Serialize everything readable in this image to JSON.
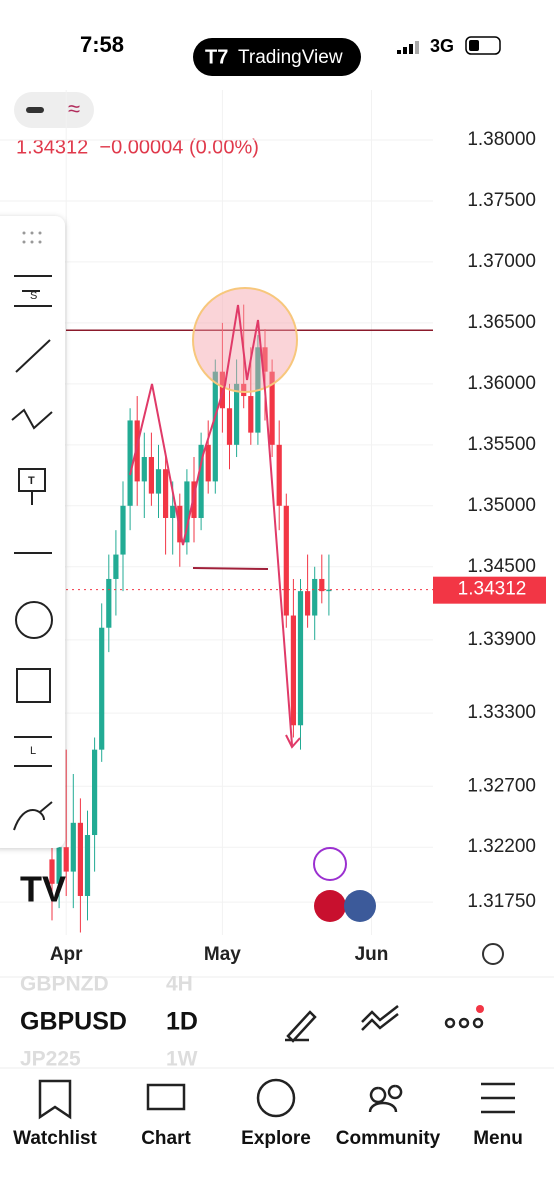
{
  "status_bar": {
    "time": "7:58",
    "network": "3G"
  },
  "header": {
    "app_name": "TradingView"
  },
  "quote": {
    "text": "1.34312  −0.00004 (0.00%)"
  },
  "chart_data": {
    "type": "candlestick",
    "categories": [
      null,
      null,
      "Apr",
      null,
      null,
      null,
      null,
      null,
      null,
      null,
      null,
      null,
      null,
      null,
      null,
      null,
      null,
      null,
      null,
      null,
      null,
      null,
      null,
      null,
      "May",
      null,
      null,
      null,
      null,
      null,
      null,
      null,
      null,
      null,
      null,
      null,
      null,
      null,
      null,
      null,
      null,
      null,
      null,
      null,
      null,
      "Jun"
    ],
    "open": [
      1.321,
      1.319,
      1.322,
      1.32,
      1.324,
      1.318,
      1.323,
      1.33,
      1.34,
      1.344,
      1.346,
      1.35,
      1.357,
      1.352,
      1.354,
      1.351,
      1.353,
      1.349,
      1.35,
      1.347,
      1.352,
      1.349,
      1.355,
      1.352,
      1.361,
      1.358,
      1.355,
      1.36,
      1.359,
      1.356,
      1.363,
      1.361,
      1.355,
      1.35,
      1.341,
      1.332,
      1.343,
      1.341,
      1.344,
      1.343,
      null,
      null,
      null,
      null,
      null,
      null
    ],
    "high": [
      1.323,
      1.329,
      1.33,
      1.328,
      1.326,
      1.325,
      1.331,
      1.342,
      1.346,
      1.348,
      1.352,
      1.358,
      1.359,
      1.356,
      1.356,
      1.355,
      1.354,
      1.352,
      1.351,
      1.353,
      1.354,
      1.356,
      1.357,
      1.362,
      1.365,
      1.36,
      1.362,
      1.3665,
      1.363,
      1.364,
      1.3645,
      1.362,
      1.357,
      1.351,
      1.344,
      1.344,
      1.346,
      1.345,
      1.346,
      1.346,
      null,
      null,
      null,
      null,
      null,
      null
    ],
    "low": [
      1.316,
      1.317,
      1.318,
      1.317,
      1.315,
      1.316,
      1.32,
      1.329,
      1.338,
      1.341,
      1.343,
      1.348,
      1.35,
      1.349,
      1.35,
      1.349,
      1.346,
      1.346,
      1.345,
      1.346,
      1.347,
      1.348,
      1.351,
      1.351,
      1.356,
      1.353,
      1.354,
      1.358,
      1.355,
      1.355,
      1.357,
      1.354,
      1.348,
      1.34,
      1.331,
      1.33,
      1.34,
      1.339,
      1.342,
      1.341,
      null,
      null,
      null,
      null,
      null,
      null
    ],
    "close": [
      1.319,
      1.322,
      1.32,
      1.324,
      1.318,
      1.323,
      1.33,
      1.34,
      1.344,
      1.346,
      1.35,
      1.357,
      1.352,
      1.354,
      1.351,
      1.353,
      1.349,
      1.35,
      1.347,
      1.352,
      1.349,
      1.355,
      1.352,
      1.361,
      1.358,
      1.355,
      1.36,
      1.359,
      1.356,
      1.363,
      1.361,
      1.355,
      1.35,
      1.341,
      1.332,
      1.343,
      1.341,
      1.344,
      1.343,
      1.34312,
      null,
      null,
      null,
      null,
      null,
      null
    ],
    "up_color": "#22ab94",
    "down_color": "#f23645",
    "ylim": [
      1.3148,
      1.3841
    ],
    "yticks": [
      {
        "value": 1.38,
        "label": "1.38000"
      },
      {
        "value": 1.375,
        "label": "1.37500"
      },
      {
        "value": 1.37,
        "label": "1.37000"
      },
      {
        "value": 1.365,
        "label": "1.36500"
      },
      {
        "value": 1.36,
        "label": "1.36000"
      },
      {
        "value": 1.355,
        "label": "1.35500"
      },
      {
        "value": 1.35,
        "label": "1.35000"
      },
      {
        "value": 1.345,
        "label": "1.34500"
      },
      {
        "value": 1.339,
        "label": "1.33900"
      },
      {
        "value": 1.333,
        "label": "1.33300"
      },
      {
        "value": 1.327,
        "label": "1.32700"
      },
      {
        "value": 1.322,
        "label": "1.32200"
      },
      {
        "value": 1.3175,
        "label": "1.31750"
      }
    ],
    "horizontal_line": 1.3644
  },
  "symbol_picker": {
    "rows": [
      [
        "GBPNZD",
        "4H"
      ],
      [
        "GBPUSD",
        "1D"
      ],
      [
        "JP225",
        "1W"
      ]
    ]
  },
  "nav": {
    "items": [
      "Watchlist",
      "Chart",
      "Explore",
      "Community",
      "Menu"
    ]
  }
}
